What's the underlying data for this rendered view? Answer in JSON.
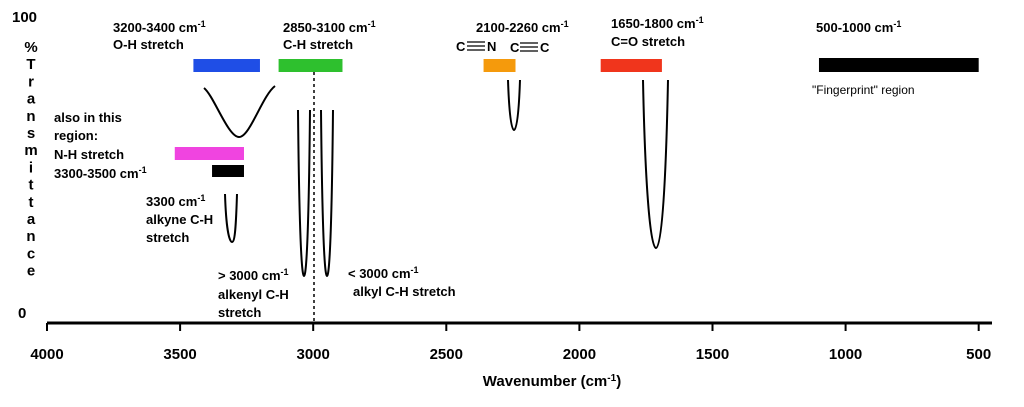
{
  "chart_data": {
    "type": "diagram",
    "x_range": [
      4000,
      450
    ],
    "xlabel": "Wavenumber (cm",
    "xlabel_sup": "-1",
    "xlabel_close": ")",
    "ticks": [
      "4000",
      "3500",
      "3000",
      "2500",
      "2000",
      "1500",
      "1000",
      "500"
    ],
    "y_top": "100",
    "y_bottom": "0",
    "y_label_letters": [
      "%",
      "T",
      "r",
      "a",
      "n",
      "s",
      "m",
      "i",
      "t",
      "t",
      "a",
      "n",
      "c",
      "e"
    ],
    "bands": [
      {
        "id": "oh",
        "range": [
          3450,
          3200
        ],
        "color": "#1f4ee6",
        "line1": "3200-3400 cm",
        "line2": "O-H stretch",
        "line2_color": "#1f55e0"
      },
      {
        "id": "ch",
        "range": [
          3130,
          2890
        ],
        "color": "#2ec02e",
        "line1": "2850-3100 cm",
        "line2": "C-H stretch",
        "line2_color": "#2bb02b"
      },
      {
        "id": "nitrile",
        "range": [
          2360,
          2240
        ],
        "color": "#f59a0c",
        "line1": "2100-2260 cm",
        "line2": ""
      },
      {
        "id": "carbonyl",
        "range": [
          1920,
          1690
        ],
        "color": "#f0351c",
        "line1": "1650-1800 cm",
        "line2": "C=O stretch"
      },
      {
        "id": "fingerprint",
        "range": [
          1100,
          500
        ],
        "color": "#000000",
        "line1": "500-1000 cm",
        "line2": "\"Fingerprint\" region"
      },
      {
        "id": "nh",
        "range": [
          3520,
          3260
        ],
        "color": "#f044e0",
        "line1": "",
        "line2": "N-H stretch",
        "line2_color": "#e83ad8"
      },
      {
        "id": "nh-range",
        "range": [
          3380,
          3260
        ],
        "color": "#000000",
        "line1": "3300-3500 cm",
        "line2": ""
      }
    ],
    "peaks": [
      {
        "id": "oh-broad",
        "center": 3300
      },
      {
        "id": "alkyne-ch",
        "center": 3300
      },
      {
        "id": "alkenyl-ch",
        "center": 3040
      },
      {
        "id": "alkyl-ch",
        "center": 2950
      },
      {
        "id": "nitrile",
        "center": 2250
      },
      {
        "id": "carbonyl",
        "center": 1740
      }
    ],
    "triple_bonds": [
      "C",
      "N",
      "C",
      "C"
    ],
    "sup": "-1",
    "also_region": [
      "also in this",
      "region:"
    ],
    "alkyne": [
      "3300 cm",
      "alkyne C-H",
      "stretch"
    ],
    "alkenyl": [
      "> 3000 cm",
      "alkenyl C-H",
      "stretch"
    ],
    "alkyl": [
      "< 3000 cm",
      "alkyl C-H stretch"
    ]
  }
}
